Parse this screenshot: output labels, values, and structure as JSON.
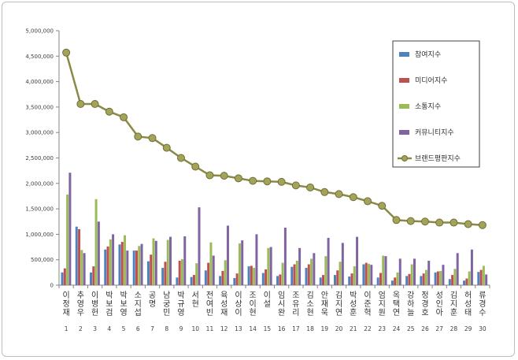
{
  "chart_data": {
    "type": "bar",
    "categories": [
      "이정재",
      "추영우",
      "이병헌",
      "박보검",
      "박보영",
      "소지섭",
      "공명",
      "남궁민",
      "박규영",
      "서현",
      "전여빈",
      "육성재",
      "이상이",
      "조이현",
      "이설",
      "임시완",
      "조유리",
      "김소현",
      "안재욱",
      "김지연",
      "박성훈",
      "이준혁",
      "엄지원",
      "옥택연",
      "강하늘",
      "정경호",
      "성인아",
      "김지훈",
      "허성태",
      "류경수"
    ],
    "x": [
      "1",
      "2",
      "3",
      "4",
      "5",
      "6",
      "7",
      "8",
      "9",
      "10",
      "11",
      "12",
      "13",
      "14",
      "15",
      "16",
      "17",
      "18",
      "19",
      "20",
      "21",
      "22",
      "23",
      "24",
      "25",
      "26",
      "27",
      "28",
      "29",
      "30"
    ],
    "ylim": [
      0,
      5000000
    ],
    "yticks": [
      "0",
      "500,000",
      "1,000,000",
      "1,500,000",
      "2,000,000",
      "2,500,000",
      "3,000,000",
      "3,500,000",
      "4,000,000",
      "4,500,000",
      "5,000,000"
    ],
    "grid": false,
    "legend_position": "right",
    "series": [
      {
        "name": "참여지수",
        "kind": "bar",
        "color": "#4f81bd",
        "values": [
          250000,
          1150000,
          250000,
          700000,
          800000,
          680000,
          470000,
          340000,
          150000,
          160000,
          290000,
          180000,
          140000,
          370000,
          240000,
          180000,
          360000,
          340000,
          150000,
          200000,
          170000,
          410000,
          150000,
          90000,
          180000,
          180000,
          250000,
          120000,
          90000,
          260000
        ]
      },
      {
        "name": "미디어지수",
        "kind": "bar",
        "color": "#c0504d",
        "values": [
          330000,
          1100000,
          370000,
          760000,
          850000,
          680000,
          600000,
          460000,
          480000,
          200000,
          440000,
          280000,
          230000,
          380000,
          310000,
          210000,
          410000,
          410000,
          200000,
          290000,
          230000,
          440000,
          240000,
          150000,
          220000,
          230000,
          270000,
          200000,
          130000,
          300000
        ]
      },
      {
        "name": "소통지수",
        "kind": "bar",
        "color": "#9bbb59",
        "values": [
          1780000,
          690000,
          1690000,
          900000,
          980000,
          770000,
          920000,
          890000,
          510000,
          430000,
          840000,
          490000,
          820000,
          340000,
          730000,
          440000,
          480000,
          520000,
          570000,
          460000,
          370000,
          420000,
          580000,
          250000,
          410000,
          300000,
          280000,
          320000,
          270000,
          380000
        ]
      },
      {
        "name": "커뮤니티지수",
        "kind": "bar",
        "color": "#8064a2",
        "values": [
          2210000,
          630000,
          1250000,
          1000000,
          680000,
          810000,
          870000,
          950000,
          960000,
          1530000,
          580000,
          1170000,
          880000,
          1000000,
          750000,
          1130000,
          730000,
          630000,
          930000,
          830000,
          950000,
          400000,
          570000,
          520000,
          520000,
          480000,
          400000,
          630000,
          700000,
          210000
        ]
      },
      {
        "name": "브랜드평판지수",
        "kind": "line",
        "color": "#8a8a46",
        "values": [
          4570000,
          3560000,
          3560000,
          3410000,
          3300000,
          2920000,
          2890000,
          2700000,
          2500000,
          2330000,
          2160000,
          2150000,
          2100000,
          2050000,
          2040000,
          2030000,
          1960000,
          1920000,
          1830000,
          1790000,
          1730000,
          1650000,
          1560000,
          1280000,
          1260000,
          1250000,
          1230000,
          1230000,
          1200000,
          1180000
        ]
      }
    ]
  }
}
